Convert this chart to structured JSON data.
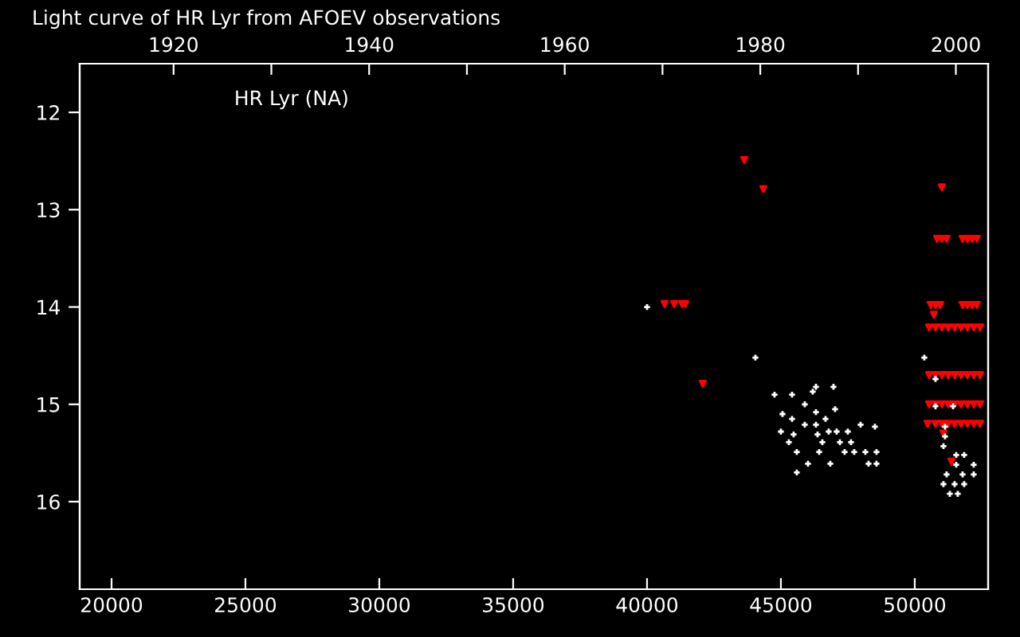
{
  "chart_data": {
    "type": "scatter",
    "title": "Light curve of HR Lyr from AFOEV observations",
    "annotations": [
      "HR Lyr (NA)"
    ],
    "xlim": [
      18810,
      52740
    ],
    "xticks": [
      20000,
      25000,
      30000,
      35000,
      40000,
      45000,
      50000
    ],
    "x2lim": [
      1910.4,
      2003.3
    ],
    "x2ticks": [
      1920,
      {
        "value": 1930,
        "label": null
      },
      1940,
      {
        "value": 1950,
        "label": null
      },
      1960,
      {
        "value": 1970,
        "label": null
      },
      1980,
      {
        "value": 1990,
        "label": null
      },
      2000
    ],
    "ylim": [
      16.9,
      11.5
    ],
    "yticks": [
      12,
      13,
      14,
      15,
      16
    ],
    "grid": false,
    "legend": false,
    "series": [
      {
        "color": "#ffffff",
        "marker": "cross",
        "x": [
          40000,
          44048,
          44762,
          45060,
          45000,
          45298,
          45417,
          45417,
          45476,
          45595,
          45595,
          45893,
          45893,
          46012,
          46190,
          46310,
          46310,
          46310,
          46369,
          46429,
          46548,
          46667,
          46786,
          46845,
          46964,
          47024,
          47083,
          47202,
          47381,
          47500,
          47619,
          47738,
          47976,
          48155,
          48274,
          48512,
          48571,
          48571,
          50357,
          50774,
          50774,
          51429,
          51131,
          51131,
          51071,
          51548,
          51845,
          51548,
          52202,
          51190,
          51786,
          52202,
          51071,
          51488,
          51845,
          51310,
          51607
        ],
        "values": [
          14.0,
          14.52,
          14.9,
          15.1,
          15.28,
          15.39,
          14.9,
          15.15,
          15.31,
          15.49,
          15.7,
          15.0,
          15.21,
          15.61,
          14.87,
          14.82,
          15.08,
          15.21,
          15.31,
          15.49,
          15.39,
          15.15,
          15.28,
          15.61,
          14.82,
          15.05,
          15.28,
          15.39,
          15.49,
          15.28,
          15.39,
          15.49,
          15.21,
          15.49,
          15.61,
          15.23,
          15.49,
          15.61,
          14.52,
          14.74,
          15.02,
          15.02,
          15.23,
          15.33,
          15.43,
          15.52,
          15.52,
          15.62,
          15.62,
          15.72,
          15.72,
          15.72,
          15.82,
          15.82,
          15.82,
          15.92,
          15.92
        ]
      },
      {
        "color": "#ff0000",
        "marker": "triangle",
        "x": [
          43631,
          44345,
          40655,
          41012,
          41310,
          41429,
          42083,
          51012,
          50833,
          51012,
          51190,
          51786,
          51964,
          52143,
          52321,
          50595,
          50774,
          50952,
          51786,
          51964,
          52143,
          52321,
          50714,
          50536,
          50774,
          51012,
          51250,
          51488,
          51726,
          51964,
          52202,
          52440,
          50536,
          50774,
          51012,
          51250,
          51488,
          51726,
          51964,
          52202,
          52440,
          50536,
          50774,
          51012,
          51250,
          51488,
          51726,
          51964,
          52202,
          52440,
          50476,
          50774,
          51012,
          51250,
          51488,
          51726,
          51964,
          52202,
          52440,
          51071,
          51369
        ],
        "values": [
          12.49,
          12.79,
          13.97,
          13.97,
          13.97,
          13.97,
          14.79,
          12.77,
          13.3,
          13.3,
          13.3,
          13.3,
          13.3,
          13.3,
          13.3,
          13.98,
          13.98,
          13.98,
          13.98,
          13.98,
          13.98,
          13.98,
          14.08,
          14.21,
          14.21,
          14.21,
          14.21,
          14.21,
          14.21,
          14.21,
          14.21,
          14.21,
          14.7,
          14.7,
          14.7,
          14.7,
          14.7,
          14.7,
          14.7,
          14.7,
          14.7,
          15.0,
          15.0,
          15.0,
          15.0,
          15.0,
          15.0,
          15.0,
          15.0,
          15.0,
          15.2,
          15.2,
          15.2,
          15.2,
          15.2,
          15.2,
          15.2,
          15.2,
          15.2,
          15.3,
          15.59
        ]
      }
    ]
  }
}
